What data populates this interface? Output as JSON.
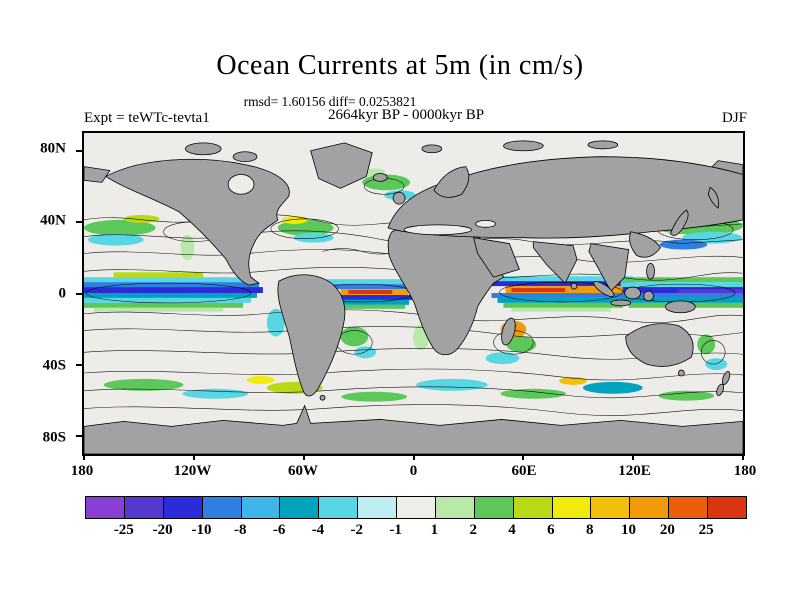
{
  "chart_data": {
    "type": "heatmap",
    "subtype": "filled-contour-world-map",
    "title": "Ocean Currents at 5m (in cm/s)",
    "stats_line": "rmsd= 1.60156 diff= 0.0253821",
    "comparison_line": "2664kyr BP - 0000kyr BP",
    "experiment_label": "Expt = teWTc-tevta1",
    "season_label": "DJF",
    "units": "cm/s",
    "x_axis": {
      "tick_labels": [
        "180",
        "120W",
        "60W",
        "0",
        "60E",
        "120E",
        "180"
      ],
      "tick_lon": [
        -180,
        -120,
        -60,
        0,
        60,
        120,
        180
      ]
    },
    "y_axis": {
      "tick_labels": [
        "80N",
        "40N",
        "0",
        "40S",
        "80S"
      ],
      "tick_lat": [
        80,
        40,
        0,
        -40,
        -80
      ]
    },
    "colorbar": {
      "tick_labels": [
        "-25",
        "-20",
        "-10",
        "-8",
        "-6",
        "-4",
        "-2",
        "-1",
        "1",
        "2",
        "4",
        "6",
        "8",
        "10",
        "20",
        "25"
      ],
      "segment_colors": [
        "#8a3fd4",
        "#5438cf",
        "#2b2bd9",
        "#2f7fe0",
        "#3fb6ea",
        "#00a3bb",
        "#59d6e3",
        "#bfeef2",
        "#eeede9",
        "#b9e9a8",
        "#5cc85a",
        "#b9d816",
        "#f2ea0a",
        "#f2c00a",
        "#f29b0a",
        "#ea5f0a",
        "#d93511"
      ]
    },
    "map_colors": {
      "land": "#a2a2a2",
      "ocean": "#edece9",
      "contour_line": "#000000"
    }
  }
}
